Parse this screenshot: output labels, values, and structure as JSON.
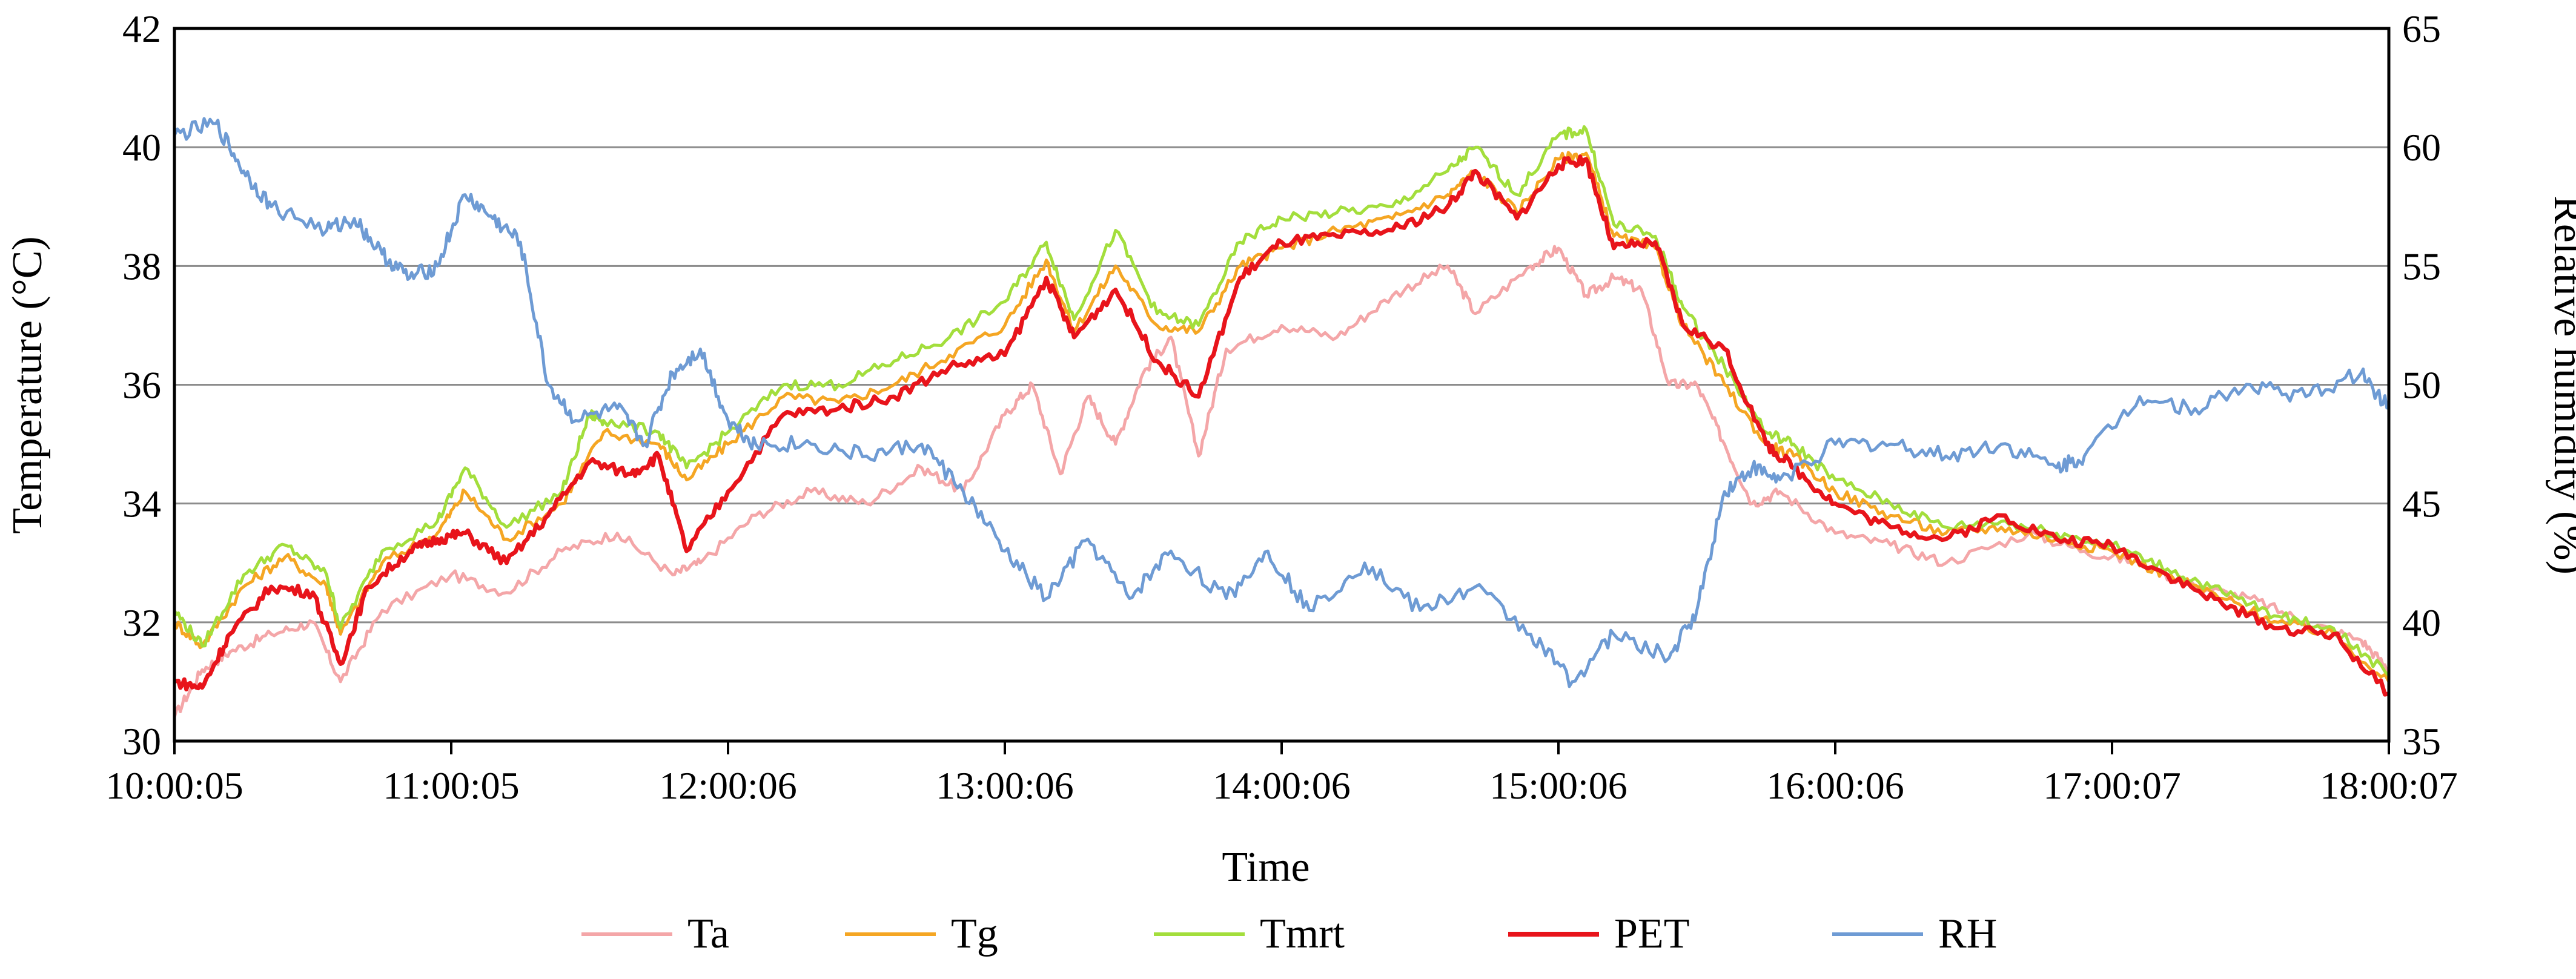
{
  "chart_data": {
    "type": "line",
    "title": "",
    "xlabel": "Time",
    "ylabel": "Temperature (°C)",
    "y2label": "Relative humidity (%)",
    "x_ticks": [
      "10:00:05",
      "11:00:05",
      "12:00:06",
      "13:00:06",
      "14:00:06",
      "15:00:06",
      "16:00:06",
      "17:00:07",
      "18:00:07"
    ],
    "x_hours": [
      0,
      1,
      2,
      3,
      4,
      5,
      6,
      7,
      8
    ],
    "ylim": [
      30,
      42
    ],
    "y_ticks": [
      30,
      32,
      34,
      36,
      38,
      40,
      42
    ],
    "y2lim": [
      35,
      65
    ],
    "y2_ticks": [
      35,
      40,
      45,
      50,
      55,
      60,
      65
    ],
    "grid": true,
    "legend_position": "bottom",
    "series": [
      {
        "name": "Ta",
        "color": "#F4A6A8",
        "axis": "left",
        "x": [
          0,
          0.1,
          0.2,
          0.35,
          0.5,
          0.6,
          0.75,
          1.0,
          1.2,
          1.4,
          1.6,
          1.8,
          1.9,
          2.1,
          2.3,
          2.5,
          2.7,
          2.85,
          3.0,
          3.1,
          3.2,
          3.3,
          3.4,
          3.5,
          3.6,
          3.7,
          3.8,
          4.0,
          4.2,
          4.4,
          4.6,
          4.7,
          4.9,
          5.0,
          5.1,
          5.2,
          5.3,
          5.4,
          5.5,
          5.6,
          5.7,
          5.8,
          6.0,
          6.2,
          6.4,
          6.7,
          6.9,
          7.1,
          7.3,
          7.5,
          7.7,
          7.9,
          8.0
        ],
        "y": [
          30.4,
          31.2,
          31.5,
          31.8,
          32.0,
          31.0,
          32.2,
          32.8,
          32.5,
          33.2,
          33.5,
          32.8,
          33.0,
          33.8,
          34.2,
          34.0,
          34.6,
          34.2,
          35.5,
          36.0,
          34.5,
          35.8,
          35.0,
          36.2,
          36.8,
          34.8,
          36.6,
          37.0,
          36.8,
          37.5,
          38.0,
          37.2,
          38.0,
          38.3,
          37.5,
          37.8,
          37.6,
          36.0,
          36.0,
          35.0,
          34.0,
          34.2,
          33.5,
          33.3,
          33.0,
          33.5,
          33.2,
          33.0,
          32.6,
          32.4,
          32.0,
          31.7,
          31.2
        ]
      },
      {
        "name": "Tg",
        "color": "#F5A623",
        "axis": "left",
        "x": [
          0,
          0.1,
          0.25,
          0.4,
          0.55,
          0.6,
          0.75,
          0.95,
          1.05,
          1.2,
          1.4,
          1.55,
          1.75,
          1.85,
          2.0,
          2.2,
          2.4,
          2.6,
          2.8,
          3.0,
          3.15,
          3.25,
          3.4,
          3.55,
          3.7,
          3.85,
          4.0,
          4.2,
          4.4,
          4.6,
          4.7,
          4.85,
          5.0,
          5.1,
          5.2,
          5.35,
          5.45,
          5.6,
          5.75,
          5.85,
          6.0,
          6.2,
          6.4,
          6.6,
          6.8,
          7.0,
          7.2,
          7.4,
          7.6,
          7.8,
          8.0
        ],
        "y": [
          32.0,
          31.6,
          32.6,
          33.1,
          32.6,
          31.8,
          33.0,
          33.5,
          34.2,
          33.4,
          34.0,
          35.2,
          35.0,
          34.4,
          35.0,
          35.8,
          35.7,
          36.0,
          36.5,
          37.0,
          38.1,
          36.9,
          38.0,
          37.0,
          36.9,
          38.0,
          38.3,
          38.6,
          38.8,
          39.2,
          39.6,
          38.9,
          39.8,
          39.9,
          38.5,
          38.3,
          37.0,
          36.0,
          35.0,
          34.8,
          34.2,
          33.8,
          33.5,
          33.6,
          33.4,
          33.2,
          32.8,
          32.4,
          32.0,
          31.8,
          31.0
        ]
      },
      {
        "name": "Tmrt",
        "color": "#A3DE3C",
        "axis": "left",
        "x": [
          0,
          0.1,
          0.25,
          0.4,
          0.55,
          0.6,
          0.75,
          0.95,
          1.05,
          1.2,
          1.4,
          1.5,
          1.55,
          1.75,
          1.85,
          2.0,
          2.2,
          2.4,
          2.6,
          2.8,
          3.0,
          3.15,
          3.25,
          3.4,
          3.55,
          3.7,
          3.85,
          4.0,
          4.2,
          4.4,
          4.6,
          4.7,
          4.85,
          5.0,
          5.1,
          5.2,
          5.35,
          5.45,
          5.6,
          5.75,
          5.85,
          6.0,
          6.2,
          6.4,
          6.6,
          6.8,
          7.0,
          7.2,
          7.4,
          7.6,
          7.8,
          8.0
        ],
        "y": [
          32.2,
          31.6,
          32.8,
          33.3,
          32.8,
          31.9,
          33.2,
          33.7,
          34.6,
          33.6,
          34.2,
          35.5,
          35.4,
          35.2,
          34.6,
          35.2,
          36.0,
          36.0,
          36.4,
          36.8,
          37.4,
          38.4,
          37.1,
          38.6,
          37.2,
          37.0,
          38.4,
          38.8,
          38.9,
          39.0,
          39.6,
          40.0,
          39.2,
          40.2,
          40.3,
          38.7,
          38.5,
          37.3,
          36.3,
          35.2,
          35.0,
          34.4,
          34.0,
          33.6,
          33.7,
          33.5,
          33.3,
          32.9,
          32.5,
          32.1,
          31.9,
          31.1
        ]
      },
      {
        "name": "PET",
        "color": "#E8141B",
        "axis": "left",
        "x": [
          0,
          0.1,
          0.2,
          0.35,
          0.5,
          0.6,
          0.7,
          0.85,
          0.95,
          1.05,
          1.2,
          1.35,
          1.5,
          1.65,
          1.75,
          1.85,
          2.0,
          2.2,
          2.4,
          2.6,
          2.8,
          3.0,
          3.15,
          3.25,
          3.4,
          3.55,
          3.7,
          3.85,
          4.0,
          4.2,
          4.4,
          4.6,
          4.7,
          4.85,
          5.0,
          5.1,
          5.2,
          5.35,
          5.45,
          5.6,
          5.75,
          5.85,
          6.0,
          6.2,
          6.4,
          6.6,
          6.8,
          7.0,
          7.2,
          7.4,
          7.6,
          7.8,
          8.0
        ],
        "y": [
          31.0,
          30.9,
          31.8,
          32.6,
          32.5,
          31.3,
          32.6,
          33.2,
          33.4,
          33.5,
          33.0,
          33.8,
          34.7,
          34.5,
          34.8,
          33.2,
          34.2,
          35.5,
          35.6,
          35.8,
          36.3,
          36.5,
          37.8,
          36.8,
          37.6,
          36.4,
          35.8,
          37.8,
          38.4,
          38.5,
          38.6,
          39.0,
          39.6,
          38.8,
          39.7,
          39.8,
          38.3,
          38.4,
          37.0,
          36.6,
          35.0,
          34.6,
          34.0,
          33.6,
          33.4,
          33.8,
          33.4,
          33.3,
          32.8,
          32.3,
          31.9,
          31.8,
          30.8
        ]
      },
      {
        "name": "RH",
        "color": "#6E9BD4",
        "axis": "right",
        "x": [
          0,
          0.15,
          0.25,
          0.35,
          0.55,
          0.65,
          0.75,
          0.85,
          0.95,
          1.05,
          1.15,
          1.25,
          1.35,
          1.45,
          1.6,
          1.7,
          1.8,
          1.9,
          2.0,
          2.1,
          2.3,
          2.5,
          2.7,
          2.85,
          3.0,
          3.15,
          3.3,
          3.45,
          3.6,
          3.8,
          3.95,
          4.1,
          4.3,
          4.5,
          4.7,
          4.9,
          5.05,
          5.2,
          5.4,
          5.5,
          5.6,
          5.7,
          5.8,
          6.0,
          6.2,
          6.4,
          6.6,
          6.8,
          6.9,
          7.1,
          7.3,
          7.5,
          7.7,
          7.9,
          8.0
        ],
        "y": [
          60.5,
          61.0,
          59.0,
          57.5,
          56.5,
          57.0,
          55.5,
          54.5,
          55.0,
          58.0,
          57.0,
          56.0,
          50.0,
          48.5,
          49.0,
          47.5,
          50.5,
          51.5,
          48.5,
          47.5,
          47.5,
          47.0,
          47.5,
          45.5,
          43.0,
          41.0,
          43.5,
          41.0,
          43.0,
          41.0,
          43.0,
          40.5,
          42.5,
          40.5,
          41.5,
          39.5,
          37.5,
          39.5,
          38.5,
          40.5,
          45.5,
          46.5,
          46.0,
          47.5,
          47.5,
          47.0,
          47.5,
          46.5,
          47.0,
          49.5,
          49.0,
          50.0,
          49.5,
          50.5,
          49.0
        ]
      }
    ]
  }
}
